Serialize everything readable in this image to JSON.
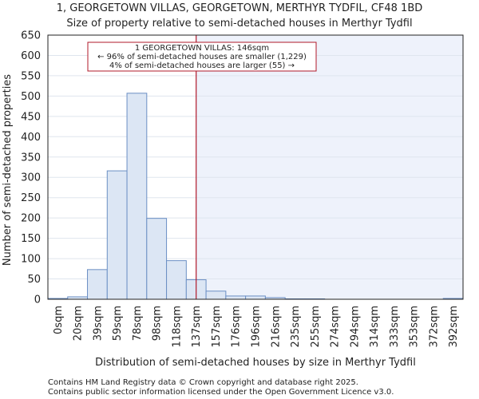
{
  "chart_data": {
    "type": "bar",
    "title": "1, GEORGETOWN VILLAS, GEORGETOWN, MERTHYR TYDFIL, CF48 1BD",
    "subtitle": "Size of property relative to semi-detached houses in Merthyr Tydfil",
    "xlabel": "Distribution of semi-detached houses by size in Merthyr Tydfil",
    "ylabel": "Number of semi-detached properties",
    "ylim": [
      0,
      650
    ],
    "yticks": [
      0,
      50,
      100,
      150,
      200,
      250,
      300,
      350,
      400,
      450,
      500,
      550,
      600,
      650
    ],
    "categories": [
      "0sqm",
      "20sqm",
      "39sqm",
      "59sqm",
      "78sqm",
      "98sqm",
      "118sqm",
      "137sqm",
      "157sqm",
      "176sqm",
      "196sqm",
      "216sqm",
      "235sqm",
      "255sqm",
      "274sqm",
      "294sqm",
      "314sqm",
      "333sqm",
      "353sqm",
      "372sqm",
      "392sqm"
    ],
    "values": [
      2,
      6,
      73,
      316,
      507,
      199,
      95,
      48,
      20,
      8,
      8,
      4,
      1,
      1,
      0,
      0,
      0,
      0,
      0,
      0,
      2
    ],
    "marker": {
      "value_sqm": 146,
      "position_bins": 7.5
    },
    "annotation": {
      "line1": "1 GEORGETOWN VILLAS: 146sqm",
      "line2": "← 96% of semi-detached houses are smaller (1,229)",
      "line3": "4% of semi-detached houses are larger (55) →"
    },
    "colors": {
      "bar_fill": "#dce6f4",
      "bar_stroke": "#6b8fc4",
      "marker": "#b0182a",
      "shade": "#eef2fb",
      "grid": "#dfe5ee"
    }
  },
  "footer": {
    "line1": "Contains HM Land Registry data © Crown copyright and database right 2025.",
    "line2": "Contains public sector information licensed under the Open Government Licence v3.0."
  }
}
